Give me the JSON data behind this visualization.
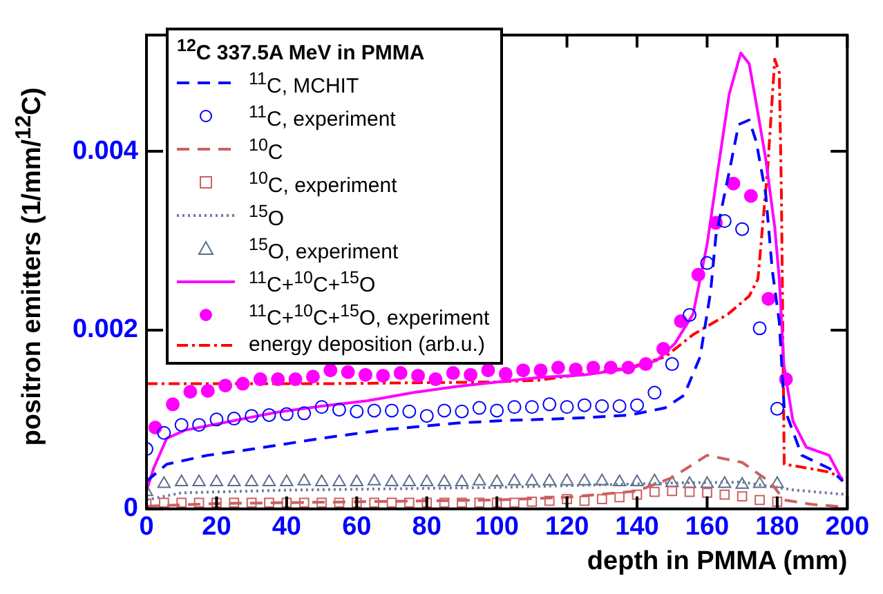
{
  "chart_data": {
    "type": "line",
    "xlabel": "depth in PMMA (mm)",
    "ylabel": "positron emitters (1/mm/$^{12}$C)",
    "legend_title": "$^{12}$C 337.5A MeV in PMMA",
    "legend": "top left",
    "xlim": [
      0,
      200
    ],
    "ylim": [
      0,
      0.0053
    ],
    "xticks": [
      0,
      20,
      40,
      60,
      80,
      100,
      120,
      140,
      160,
      180,
      200
    ],
    "yticks": [
      0,
      0.002,
      0.004
    ],
    "series": [
      {
        "name": "$^{11}$C, MCHIT",
        "color": "#0000ff",
        "line_style": "dashed",
        "marker": "none",
        "x": [
          0,
          5.8,
          17.5,
          30.4,
          50,
          69,
          88.7,
          102.6,
          112,
          125,
          138,
          148,
          153.4,
          158,
          161,
          162.5,
          166.3,
          169,
          172,
          174,
          176.7,
          178.6,
          180.6,
          182,
          187,
          195,
          198.7
        ],
        "values": [
          0.00031,
          0.0005,
          0.0006,
          0.00067,
          0.00079,
          0.00089,
          0.00096,
          0.00099,
          0.001,
          0.00102,
          0.00105,
          0.00113,
          0.00127,
          0.0017,
          0.00243,
          0.00305,
          0.00377,
          0.0043,
          0.00435,
          0.00411,
          0.00353,
          0.00267,
          0.00209,
          0.00113,
          0.0006,
          0.00045,
          0.00031
        ]
      },
      {
        "name": "$^{11}$C, experiment",
        "type": "scatter",
        "color": "#0000ff",
        "marker": "circle_open",
        "x": [
          0,
          5,
          10,
          15,
          20,
          25,
          30,
          35,
          40,
          45,
          50,
          55,
          60,
          65,
          70,
          75,
          80,
          85,
          90,
          95,
          100,
          105,
          110,
          115,
          120,
          125,
          130,
          135,
          140,
          145,
          150,
          155,
          160,
          165,
          170,
          175,
          180
        ],
        "values": [
          0.00067,
          0.00085,
          0.00094,
          0.00094,
          0.001,
          0.00101,
          0.00104,
          0.00105,
          0.00106,
          0.00107,
          0.00114,
          0.00111,
          0.00109,
          0.0011,
          0.0011,
          0.00109,
          0.00104,
          0.0011,
          0.00109,
          0.00113,
          0.0011,
          0.00114,
          0.00114,
          0.00117,
          0.00114,
          0.00116,
          0.00115,
          0.00115,
          0.00116,
          0.0013,
          0.00162,
          0.00217,
          0.00275,
          0.00322,
          0.00313,
          0.00202,
          0.00112
        ]
      },
      {
        "name": "$^{10}$C",
        "color": "#cc6060",
        "line_style": "dashed",
        "marker": "none",
        "x": [
          0,
          20,
          60,
          100,
          120,
          140,
          150,
          160,
          170,
          178,
          182,
          190,
          200
        ],
        "values": [
          3e-05,
          6e-05,
          8e-05,
          0.0001,
          0.00013,
          0.0002,
          0.00035,
          0.0006,
          0.00052,
          0.0003,
          0.0001,
          5e-05,
          2e-05
        ]
      },
      {
        "name": "$^{10}$C, experiment",
        "type": "scatter",
        "color": "#cc6060",
        "marker": "square_open",
        "x": [
          0,
          5,
          10,
          15,
          20,
          25,
          30,
          35,
          40,
          45,
          50,
          55,
          60,
          65,
          70,
          75,
          80,
          85,
          90,
          95,
          100,
          105,
          110,
          115,
          120,
          125,
          130,
          135,
          140,
          145,
          150,
          155,
          160,
          165,
          170,
          175,
          180
        ],
        "values": [
          6e-05,
          7e-05,
          7e-05,
          7e-05,
          7e-05,
          7e-05,
          7e-05,
          7e-05,
          7e-05,
          7e-05,
          7e-05,
          7e-05,
          7e-05,
          7e-05,
          7e-05,
          7e-05,
          7e-05,
          7e-05,
          7e-05,
          7e-05,
          7e-05,
          7e-05,
          8e-05,
          9e-05,
          0.00011,
          9e-05,
          0.00011,
          0.00013,
          0.00016,
          0.00019,
          0.0002,
          0.00019,
          0.00018,
          0.00016,
          0.00014,
          0.0001,
          8e-05
        ]
      },
      {
        "name": "$^{15}$O",
        "color": "#6a7f99",
        "line_style": "dotted",
        "marker": "none",
        "x": [
          0,
          10,
          40,
          100,
          150,
          170,
          185,
          200
        ],
        "values": [
          0.0001,
          0.00018,
          0.00021,
          0.00024,
          0.00029,
          0.0003,
          0.00021,
          0.00016
        ]
      },
      {
        "name": "$^{15}$O, experiment",
        "type": "scatter",
        "color": "#5a6f8a",
        "marker": "triangle_open",
        "x": [
          0,
          5,
          10,
          15,
          20,
          25,
          30,
          35,
          40,
          45,
          50,
          55,
          60,
          65,
          70,
          75,
          80,
          85,
          90,
          95,
          100,
          105,
          110,
          115,
          120,
          125,
          130,
          135,
          140,
          145,
          150,
          155,
          160,
          165,
          170,
          175,
          180
        ],
        "values": [
          0.00019,
          0.00028,
          0.0003,
          0.0003,
          0.0003,
          0.0003,
          0.0003,
          0.0003,
          0.0003,
          0.00031,
          0.0003,
          0.0003,
          0.0003,
          0.00031,
          0.0003,
          0.0003,
          0.0003,
          0.0003,
          0.0003,
          0.00031,
          0.0003,
          0.00031,
          0.00031,
          0.00031,
          0.00031,
          0.00031,
          0.00031,
          0.0003,
          0.0003,
          0.00031,
          0.00029,
          0.00028,
          0.00028,
          0.00028,
          0.00027,
          0.00028,
          0.00028
        ]
      },
      {
        "name": "$^{11}$C+$^{10}$C+$^{15}$O",
        "color": "#ff00ff",
        "line_style": "solid",
        "marker": "none",
        "x": [
          0,
          2,
          5.8,
          11,
          24,
          37,
          50,
          63,
          76,
          88.6,
          102.6,
          112,
          125,
          138,
          145.6,
          150.8,
          156,
          160,
          163,
          166.3,
          169.6,
          172,
          174,
          176.7,
          179.3,
          180.6,
          181.9,
          184.5,
          188.3,
          194.8,
          198.7
        ],
        "values": [
          0.0002,
          0.00045,
          0.00079,
          0.00088,
          0.00098,
          0.00108,
          0.00115,
          0.00121,
          0.0013,
          0.00137,
          0.00143,
          0.00147,
          0.0015,
          0.00157,
          0.00166,
          0.00185,
          0.00218,
          0.00296,
          0.00377,
          0.00464,
          0.0051,
          0.00498,
          0.00454,
          0.00392,
          0.00315,
          0.00257,
          0.00161,
          0.00098,
          0.00069,
          0.0006,
          0.00031
        ]
      },
      {
        "name": "$^{11}$C+$^{10}$C+$^{15}$O, experiment",
        "type": "scatter",
        "color": "#ff00ff",
        "marker": "circle",
        "x": [
          2.5,
          7.5,
          12.5,
          17.5,
          22.5,
          27.5,
          32.5,
          37.5,
          42.5,
          47.5,
          52.5,
          57.5,
          62.5,
          67.5,
          72.5,
          77.5,
          82.5,
          87.5,
          92.5,
          97.5,
          102.5,
          107.5,
          112.5,
          117.5,
          122.5,
          127.5,
          132.5,
          137.5,
          142.5,
          147.5,
          152.5,
          157.5,
          162.5,
          167.5,
          172.5,
          177.5,
          182.5
        ],
        "values": [
          0.00091,
          0.00117,
          0.00131,
          0.00132,
          0.00138,
          0.0014,
          0.00145,
          0.00145,
          0.00145,
          0.00148,
          0.00155,
          0.00153,
          0.0015,
          0.00149,
          0.00152,
          0.00149,
          0.00145,
          0.00152,
          0.0015,
          0.00155,
          0.00151,
          0.00155,
          0.00155,
          0.00158,
          0.00156,
          0.00158,
          0.00158,
          0.00158,
          0.00162,
          0.00179,
          0.0021,
          0.00262,
          0.0032,
          0.00364,
          0.0035,
          0.00235,
          0.00145
        ]
      },
      {
        "name": "energy deposition (arb.u.)",
        "color": "#ff0000",
        "line_style": "dashdot",
        "marker": "none",
        "x": [
          0,
          50,
          100,
          112,
          125,
          138,
          148,
          156,
          166,
          172,
          174.5,
          177.3,
          179.3,
          180.6,
          181.2,
          182,
          189.6,
          195,
          198.7
        ],
        "values": [
          0.0014,
          0.0014,
          0.00142,
          0.00144,
          0.00151,
          0.00158,
          0.0017,
          0.00195,
          0.00218,
          0.00238,
          0.00257,
          0.00382,
          0.00503,
          0.00488,
          0.00353,
          0.0005,
          0.00045,
          0.00041,
          0.00034
        ]
      }
    ]
  }
}
